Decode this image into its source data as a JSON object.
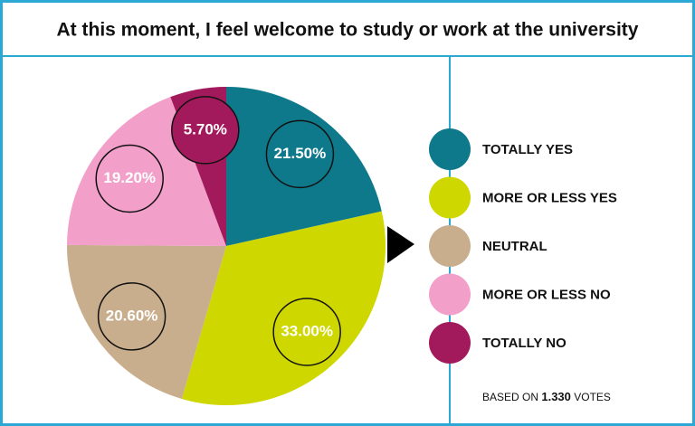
{
  "chart_data": {
    "type": "pie",
    "title": "At this moment, I feel welcome to study or work at the university",
    "categories": [
      "TOTALLY YES",
      "MORE OR LESS YES",
      "NEUTRAL",
      "MORE OR LESS NO",
      "TOTALLY NO"
    ],
    "values": [
      21.5,
      33,
      20.6,
      19.2,
      5.7
    ],
    "value_labels": [
      "21.50%",
      "33.00%",
      "20.60%",
      "19.20%",
      "5.70%"
    ],
    "colors": [
      "#0e798b",
      "#cfd700",
      "#c9ae8e",
      "#f29fca",
      "#a31a5c"
    ],
    "footnote": [
      "BASED ON",
      "1.330",
      "VOTES"
    ]
  }
}
